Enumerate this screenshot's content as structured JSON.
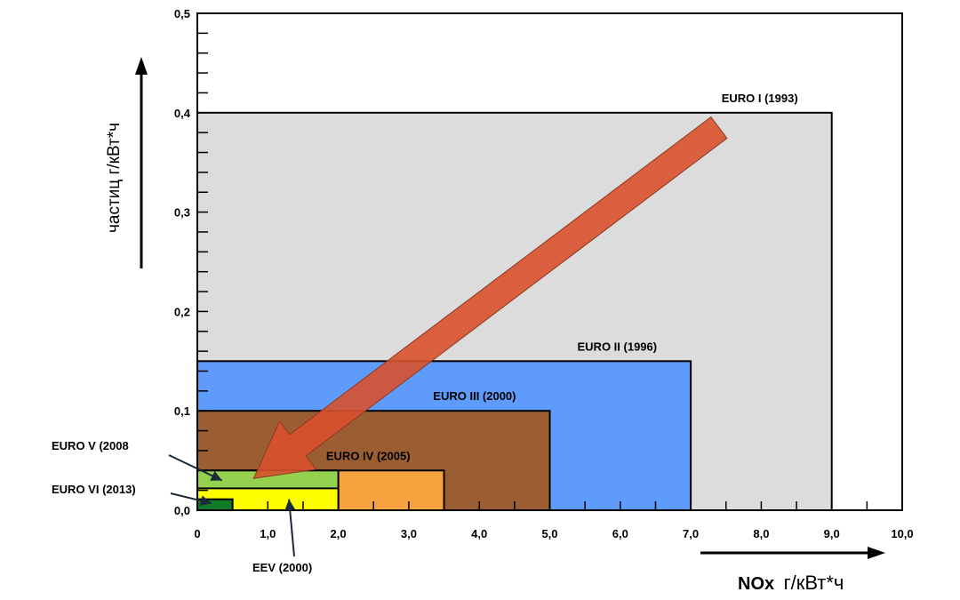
{
  "chart_data": {
    "type": "area",
    "x": {
      "label_prefix": "NOx",
      "label_suffix": "г/кВт*ч",
      "range": [
        0,
        10
      ],
      "ticks": [
        0,
        1,
        2,
        3,
        4,
        5,
        6,
        7,
        8,
        9,
        10
      ],
      "tick_labels": [
        "0",
        "1,0",
        "2,0",
        "3,0",
        "4,0",
        "5,0",
        "6,0",
        "7,0",
        "8,0",
        "9,0",
        "10,0"
      ]
    },
    "y": {
      "label": "частиц  г/кВт*ч",
      "range": [
        0,
        0.5
      ],
      "ticks": [
        0,
        0.1,
        0.2,
        0.3,
        0.4,
        0.5
      ],
      "tick_labels": [
        "0,0",
        "0,1",
        "0,2",
        "0,3",
        "0,4",
        "0,5"
      ]
    },
    "grid": false,
    "standards": [
      {
        "name": "EURO I  (1993)",
        "nox": 9.0,
        "pm": 0.4,
        "color": "#dcdcdc",
        "label_placement": "above-right"
      },
      {
        "name": "EURO II  (1996)",
        "nox": 7.0,
        "pm": 0.15,
        "color": "#5f9bfb",
        "label_placement": "above-right"
      },
      {
        "name": "EURO III  (2000)",
        "nox": 5.0,
        "pm": 0.1,
        "color": "#9a5e32",
        "label_placement": "above-right"
      },
      {
        "name": "EURO IV  (2005)",
        "nox": 3.5,
        "pm": 0.04,
        "color": "#f7a13f",
        "label_placement": "above-right"
      },
      {
        "name": "EURO V  (2008",
        "nox": 2.0,
        "pm": 0.04,
        "color": "#93d14f",
        "label_placement": "callout-left"
      },
      {
        "name": "EEV  (2000)",
        "nox": 2.0,
        "pm": 0.022,
        "color": "#ffff00",
        "label_placement": "callout-below"
      },
      {
        "name": "EURO VI  (2013)",
        "nox": 0.5,
        "pm": 0.011,
        "color": "#107c2a",
        "label_placement": "callout-left"
      }
    ],
    "trend_arrow": {
      "from": {
        "nox": 7.4,
        "pm": 0.385
      },
      "to": {
        "nox": 0.8,
        "pm": 0.032
      },
      "color": "#d8512e"
    }
  }
}
